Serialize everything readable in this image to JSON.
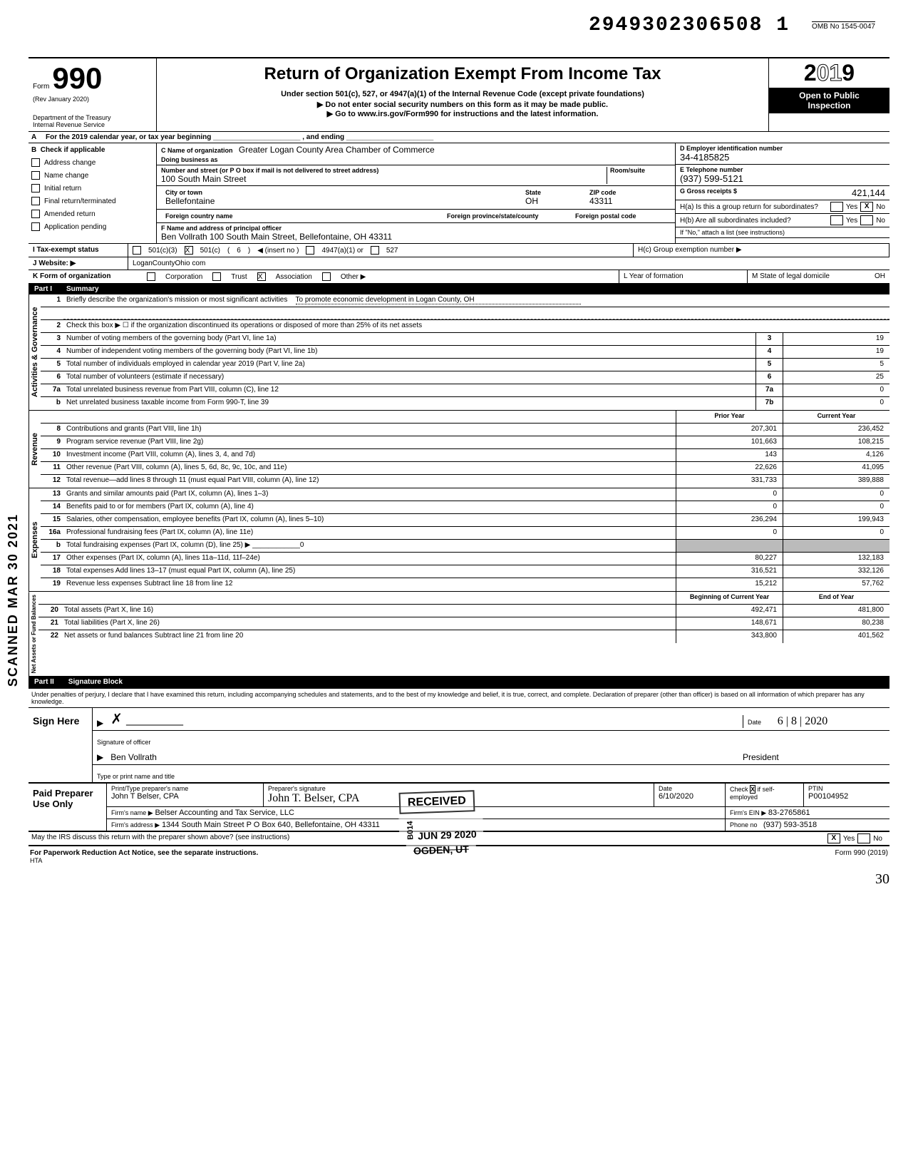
{
  "meta": {
    "handwritten_id": "2949302306508 1",
    "omb": "OMB No 1545-0047",
    "form_label": "Form",
    "form_number": "990",
    "rev": "(Rev January 2020)",
    "dept1": "Department of the Treasury",
    "dept2": "Internal Revenue Service",
    "title": "Return of Organization Exempt From Income Tax",
    "subtitle1": "Under section 501(c), 527, or 4947(a)(1) of the Internal Revenue Code (except private foundations)",
    "subtitle2": "Do not enter social security numbers on this form as it may be made public.",
    "subtitle3": "Go to www.irs.gov/Form990 for instructions and the latest information.",
    "year_display": "2019",
    "open_public1": "Open to Public",
    "open_public2": "Inspection"
  },
  "lineA": "For the 2019 calendar year, or tax year beginning ______________________ , and ending ______________________",
  "sectionB": {
    "header": "Check if applicable",
    "checks": [
      "Address change",
      "Name change",
      "Initial return",
      "Final return/terminated",
      "Amended return",
      "Application pending"
    ]
  },
  "org": {
    "c_label": "C  Name of organization",
    "name": "Greater Logan County Area Chamber of Commerce",
    "dba_label": "Doing business as",
    "dba": "",
    "street_label": "Number and street (or P O box if mail is not delivered to street address)",
    "room_label": "Room/suite",
    "street": "100 South Main Street",
    "city_label": "City or town",
    "city": "Bellefontaine",
    "state_label": "State",
    "state": "OH",
    "zip_label": "ZIP code",
    "zip": "43311",
    "foreign_country_label": "Foreign country name",
    "foreign_prov_label": "Foreign province/state/county",
    "foreign_postal_label": "Foreign postal code",
    "f_label": "F  Name and address of principal officer",
    "officer": "Ben Vollrath 100 South Main Street, Bellefontaine, OH  43311"
  },
  "rightcol": {
    "d_label": "D  Employer identification number",
    "ein": "34-4185825",
    "e_label": "E  Telephone number",
    "phone": "(937) 599-5121",
    "g_label": "G  Gross receipts $",
    "gross": "421,144",
    "ha": "H(a) Is this a group return for subordinates?",
    "hb": "H(b) Are all subordinates included?",
    "hb_note": "If \"No,\" attach a list (see instructions)",
    "hc": "H(c) Group exemption number ▶"
  },
  "status": {
    "i_label": "I   Tax-exempt status",
    "opt1": "501(c)(3)",
    "opt2": "501(c)",
    "insert": "6",
    "insert_label": "◀ (insert no )",
    "opt3": "4947(a)(1) or",
    "opt4": "527",
    "j_label": "J   Website: ▶",
    "website": "LoganCountyOhio com",
    "k_label": "K  Form of organization",
    "k_opts": [
      "Corporation",
      "Trust",
      "Association",
      "Other ▶"
    ],
    "k_checked": "Association",
    "l_label": "L Year of formation",
    "m_label": "M State of legal domicile",
    "m_val": "OH"
  },
  "part1": {
    "header_num": "Part I",
    "header_title": "Summary",
    "line1_label": "Briefly describe the organization's mission or most significant activities",
    "line1_val": "To promote economic development in Logan County, OH",
    "line2": "Check this box ▶ ☐ if the organization discontinued its operations or disposed of more than 25% of its net assets",
    "govlines": [
      {
        "n": "3",
        "t": "Number of voting members of the governing body (Part VI, line 1a)",
        "c": "3",
        "v": "19"
      },
      {
        "n": "4",
        "t": "Number of independent voting members of the governing body (Part VI, line 1b)",
        "c": "4",
        "v": "19"
      },
      {
        "n": "5",
        "t": "Total number of individuals employed in calendar year 2019 (Part V, line 2a)",
        "c": "5",
        "v": "5"
      },
      {
        "n": "6",
        "t": "Total number of volunteers (estimate if necessary)",
        "c": "6",
        "v": "25"
      },
      {
        "n": "7a",
        "t": "Total unrelated business revenue from Part VIII, column (C), line 12",
        "c": "7a",
        "v": "0"
      },
      {
        "n": "b",
        "t": "Net unrelated business taxable income from Form 990-T, line 39",
        "c": "7b",
        "v": "0"
      }
    ],
    "prior_label": "Prior Year",
    "curr_label": "Current Year",
    "revlines": [
      {
        "n": "8",
        "t": "Contributions and grants (Part VIII, line 1h)",
        "p": "207,301",
        "c": "236,452"
      },
      {
        "n": "9",
        "t": "Program service revenue (Part VIII, line 2g)",
        "p": "101,663",
        "c": "108,215"
      },
      {
        "n": "10",
        "t": "Investment income (Part VIII, column (A), lines 3, 4, and 7d)",
        "p": "143",
        "c": "4,126"
      },
      {
        "n": "11",
        "t": "Other revenue (Part VIII, column (A), lines 5, 6d, 8c, 9c, 10c, and 11e)",
        "p": "22,626",
        "c": "41,095"
      },
      {
        "n": "12",
        "t": "Total revenue—add lines 8 through 11 (must equal Part VIII, column (A), line 12)",
        "p": "331,733",
        "c": "389,888"
      }
    ],
    "explines": [
      {
        "n": "13",
        "t": "Grants and similar amounts paid (Part IX, column (A), lines 1–3)",
        "p": "0",
        "c": "0"
      },
      {
        "n": "14",
        "t": "Benefits paid to or for members (Part IX, column (A), line 4)",
        "p": "0",
        "c": "0"
      },
      {
        "n": "15",
        "t": "Salaries, other compensation, employee benefits (Part IX, column (A), lines 5–10)",
        "p": "236,294",
        "c": "199,943"
      },
      {
        "n": "16a",
        "t": "Professional fundraising fees (Part IX, column (A), line 11e)",
        "p": "0",
        "c": "0"
      },
      {
        "n": "b",
        "t": "Total fundraising expenses (Part IX, column (D), line 25) ▶ ____________0",
        "p": "",
        "c": "",
        "grey": true
      },
      {
        "n": "17",
        "t": "Other expenses (Part IX, column (A), lines 11a–11d, 11f–24e)",
        "p": "80,227",
        "c": "132,183"
      },
      {
        "n": "18",
        "t": "Total expenses Add lines 13–17 (must equal Part IX, column (A), line 25)",
        "p": "316,521",
        "c": "332,126"
      },
      {
        "n": "19",
        "t": "Revenue less expenses Subtract line 18 from line 12",
        "p": "15,212",
        "c": "57,762"
      }
    ],
    "bal_prior": "Beginning of Current Year",
    "bal_curr": "End of Year",
    "ballines": [
      {
        "n": "20",
        "t": "Total assets (Part X, line 16)",
        "p": "492,471",
        "c": "481,800"
      },
      {
        "n": "21",
        "t": "Total liabilities (Part X, line 26)",
        "p": "148,671",
        "c": "80,238"
      },
      {
        "n": "22",
        "t": "Net assets or fund balances Subtract line 21 from line 20",
        "p": "343,800",
        "c": "401,562"
      }
    ],
    "vert_gov": "Activities & Governance",
    "vert_rev": "Revenue",
    "vert_exp": "Expenses",
    "vert_bal": "Net Assets or Fund Balances"
  },
  "part2": {
    "header_num": "Part II",
    "header_title": "Signature Block",
    "perjury": "Under penalties of perjury, I declare that I have examined this return, including accompanying schedules and statements, and to the best of my knowledge and belief, it is true, correct, and complete. Declaration of preparer (other than officer) is based on all information of which preparer has any knowledge.",
    "sign_here": "Sign Here",
    "sig_of_officer": "Signature of officer",
    "date_label": "Date",
    "officer_name": "Ben Vollrath",
    "officer_title": "President",
    "type_label": "Type or print name and title",
    "date_val": "6 | 8 | 2020"
  },
  "paid": {
    "label": "Paid Preparer Use Only",
    "pt_label": "Print/Type preparer's name",
    "preparer": "John T Belser, CPA",
    "sig_label": "Preparer's signature",
    "sig": "John T. Belser, CPA",
    "date_label": "Date",
    "date": "6/10/2020",
    "check_label": "Check",
    "self_emp": "if self-employed",
    "ptin_label": "PTIN",
    "ptin": "P00104952",
    "firm_name_label": "Firm's name ▶",
    "firm_name": "Belser Accounting and Tax Service, LLC",
    "firm_ein_label": "Firm's EIN ▶",
    "firm_ein": "83-2765861",
    "firm_addr_label": "Firm's address ▶",
    "firm_addr": "1344 South Main Street P O Box 640, Bellefontaine, OH 43311",
    "phone_label": "Phone no",
    "phone": "(937) 593-3518"
  },
  "discuss": {
    "q": "May the IRS discuss this return with the preparer shown above? (see instructions)",
    "yes": "Yes",
    "no": "No"
  },
  "footer": {
    "left": "For Paperwork Reduction Act Notice, see the separate instructions.",
    "hta": "HTA",
    "right": "Form 990 (2019)",
    "page": "30"
  },
  "stamps": {
    "received": "RECEIVED",
    "bold": "B014",
    "date": "JUN 29 2020",
    "ogden": "OGDEN, UT",
    "scanned": "SCANNED MAR 30 2021"
  },
  "colors": {
    "black": "#000000",
    "grey": "#bbbbbb"
  }
}
